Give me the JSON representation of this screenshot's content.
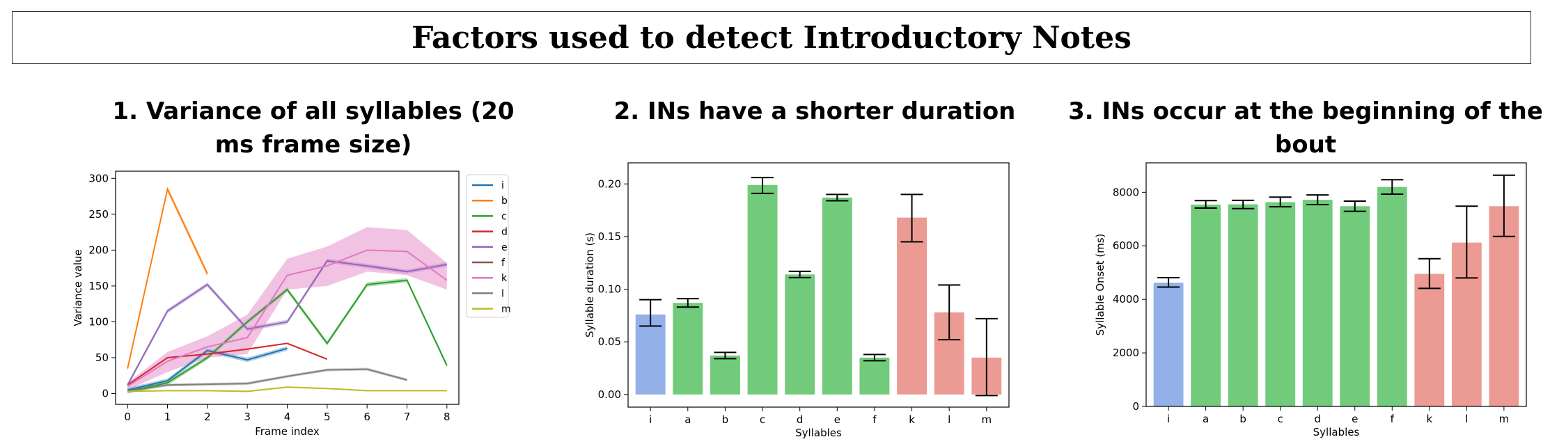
{
  "header": {
    "title": "Factors used to detect Introductory Notes"
  },
  "panels": [
    {
      "title": "1. Variance of all syllables (20 ms frame size)"
    },
    {
      "title": "2. INs have a shorter duration"
    },
    {
      "title": "3. INs occur at the beginning of the bout"
    }
  ],
  "chart_data": [
    {
      "type": "line",
      "xlabel": "Frame index",
      "ylabel": "Variance value",
      "xlim": [
        -0.3,
        8.3
      ],
      "ylim": [
        -15,
        310
      ],
      "xticks": [
        0,
        1,
        2,
        3,
        4,
        5,
        6,
        7,
        8
      ],
      "yticks": [
        0,
        50,
        100,
        150,
        200,
        250,
        300
      ],
      "legend_position": "right",
      "series": [
        {
          "name": "i",
          "color": "#1f77b4",
          "x": [
            0,
            1,
            2,
            3,
            4
          ],
          "y": [
            5,
            18,
            60,
            47,
            63
          ],
          "band": 3
        },
        {
          "name": "b",
          "color": "#ff7f0e",
          "x": [
            0,
            1,
            2
          ],
          "y": [
            35,
            285,
            167
          ],
          "band": 4
        },
        {
          "name": "c",
          "color": "#2ca02c",
          "x": [
            0,
            1,
            2,
            3,
            4,
            5,
            6,
            7,
            8
          ],
          "y": [
            3,
            15,
            50,
            100,
            145,
            70,
            152,
            158,
            39
          ],
          "band": 3
        },
        {
          "name": "d",
          "color": "#d62728",
          "x": [
            0,
            1,
            2,
            3,
            4,
            5
          ],
          "y": [
            12,
            50,
            55,
            62,
            70,
            48
          ],
          "band": 1
        },
        {
          "name": "e",
          "color": "#9467bd",
          "x": [
            0,
            1,
            2,
            3,
            4,
            5,
            6,
            7,
            8
          ],
          "y": [
            12,
            115,
            152,
            90,
            100,
            185,
            178,
            170,
            180
          ],
          "band": 3
        },
        {
          "name": "f",
          "color": "#8c564b",
          "x": [],
          "y": [],
          "band": 0
        },
        {
          "name": "k",
          "color": "#e377c2",
          "x": [
            0,
            1,
            2,
            3,
            4,
            5,
            6,
            7,
            8
          ],
          "y": [
            10,
            45,
            65,
            78,
            165,
            178,
            200,
            198,
            158
          ],
          "band_low": [
            5,
            30,
            50,
            55,
            145,
            150,
            170,
            165,
            145
          ],
          "band_high": [
            15,
            58,
            80,
            110,
            188,
            205,
            232,
            228,
            182
          ]
        },
        {
          "name": "l",
          "color": "#7f7f7f",
          "x": [
            0,
            1,
            2,
            3,
            4,
            5,
            6,
            7
          ],
          "y": [
            3,
            12,
            13,
            14,
            24,
            33,
            34,
            19
          ],
          "band": 2
        },
        {
          "name": "m",
          "color": "#bcbd22",
          "x": [
            0,
            1,
            2,
            3,
            4,
            5,
            6,
            7,
            8
          ],
          "y": [
            3,
            4,
            4,
            3,
            9,
            7,
            4,
            4,
            4
          ],
          "band": 1
        }
      ]
    },
    {
      "type": "bar",
      "xlabel": "Syllables",
      "ylabel": "Syllable duration (s)",
      "ylim": [
        -0.012,
        0.22
      ],
      "yticks": [
        0.0,
        0.05,
        0.1,
        0.15,
        0.2
      ],
      "yticklabels": [
        "0.00",
        "0.05",
        "0.10",
        "0.15",
        "0.20"
      ],
      "categories": [
        "i",
        "a",
        "b",
        "c",
        "d",
        "e",
        "f",
        "k",
        "l",
        "m"
      ],
      "values": [
        0.076,
        0.087,
        0.037,
        0.199,
        0.114,
        0.187,
        0.035,
        0.168,
        0.078,
        0.035
      ],
      "err_low": [
        0.065,
        0.083,
        0.034,
        0.191,
        0.111,
        0.184,
        0.032,
        0.145,
        0.052,
        -0.001
      ],
      "err_high": [
        0.09,
        0.091,
        0.04,
        0.206,
        0.117,
        0.19,
        0.038,
        0.19,
        0.104,
        0.072
      ],
      "colors": [
        "#93b0e8",
        "#72cb7b",
        "#72cb7b",
        "#72cb7b",
        "#72cb7b",
        "#72cb7b",
        "#72cb7b",
        "#eb9b93",
        "#eb9b93",
        "#eb9b93"
      ]
    },
    {
      "type": "bar",
      "xlabel": "Syllables",
      "ylabel": "Syllable Onset (ms)",
      "ylim": [
        0,
        9100
      ],
      "yticks": [
        0,
        2000,
        4000,
        6000,
        8000
      ],
      "yticklabels": [
        "0",
        "2000",
        "4000",
        "6000",
        "8000"
      ],
      "categories": [
        "i",
        "a",
        "b",
        "c",
        "d",
        "e",
        "f",
        "k",
        "l",
        "m"
      ],
      "values": [
        4620,
        7540,
        7550,
        7630,
        7720,
        7480,
        8200,
        4950,
        6120,
        7480
      ],
      "err_low": [
        4460,
        7410,
        7390,
        7460,
        7540,
        7290,
        7930,
        4410,
        4800,
        6350
      ],
      "err_high": [
        4810,
        7690,
        7700,
        7820,
        7900,
        7670,
        8470,
        5520,
        7480,
        8640
      ],
      "colors": [
        "#93b0e8",
        "#72cb7b",
        "#72cb7b",
        "#72cb7b",
        "#72cb7b",
        "#72cb7b",
        "#72cb7b",
        "#eb9b93",
        "#eb9b93",
        "#eb9b93"
      ]
    }
  ]
}
